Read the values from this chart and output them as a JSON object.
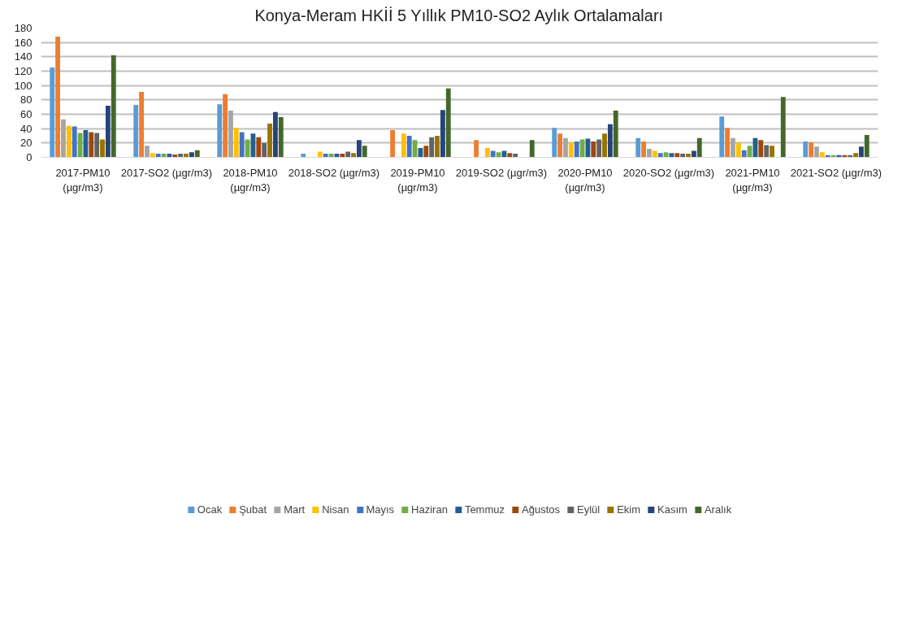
{
  "chart_data": {
    "type": "bar",
    "title": "Konya-Meram HKİİ 5 Yıllık PM10-SO2 Aylık Ortalamaları",
    "categories": [
      "2017-PM10 (µgr/m3)",
      "2017-SO2 (µgr/m3)",
      "2018-PM10 (µgr/m3)",
      "2018-SO2 (µgr/m3)",
      "2019-PM10 (µgr/m3)",
      "2019-SO2 (µgr/m3)",
      "2020-PM10 (µgr/m3)",
      "2020-SO2 (µgr/m3)",
      "2021-PM10 (µgr/m3)",
      "2021-SO2 (µgr/m3)"
    ],
    "series": [
      {
        "name": "Ocak",
        "color": "#5b9bd5",
        "values": [
          125,
          73,
          74,
          5,
          null,
          null,
          41,
          27,
          57,
          22
        ]
      },
      {
        "name": "Şubat",
        "color": "#ed7d31",
        "values": [
          168,
          91,
          88,
          null,
          38,
          24,
          33,
          22,
          41,
          21
        ]
      },
      {
        "name": "Mart",
        "color": "#a5a5a5",
        "values": [
          53,
          16,
          65,
          null,
          null,
          null,
          27,
          12,
          27,
          15
        ]
      },
      {
        "name": "Nisan",
        "color": "#ffc000",
        "values": [
          44,
          6,
          41,
          8,
          33,
          13,
          21,
          9,
          20,
          7
        ]
      },
      {
        "name": "Mayıs",
        "color": "#4472c4",
        "values": [
          43,
          5,
          35,
          5,
          30,
          9,
          22,
          6,
          10,
          3
        ]
      },
      {
        "name": "Haziran",
        "color": "#70ad47",
        "values": [
          34,
          5,
          25,
          5,
          24,
          7,
          25,
          7,
          16,
          3
        ]
      },
      {
        "name": "Temmuz",
        "color": "#255e91",
        "values": [
          38,
          5,
          33,
          5,
          13,
          9,
          26,
          6,
          27,
          3
        ]
      },
      {
        "name": "Ağustos",
        "color": "#9e480e",
        "values": [
          35,
          4,
          28,
          5,
          16,
          6,
          22,
          6,
          24,
          3
        ]
      },
      {
        "name": "Eylül",
        "color": "#636363",
        "values": [
          34,
          5,
          20,
          8,
          28,
          5,
          25,
          5,
          17,
          3
        ]
      },
      {
        "name": "Ekim",
        "color": "#997300",
        "values": [
          25,
          5,
          47,
          6,
          30,
          null,
          33,
          5,
          16,
          6
        ]
      },
      {
        "name": "Kasım",
        "color": "#264478",
        "values": [
          72,
          7,
          63,
          24,
          66,
          null,
          46,
          9,
          null,
          15
        ]
      },
      {
        "name": "Aralık",
        "color": "#43682b",
        "values": [
          142,
          10,
          56,
          16,
          96,
          24,
          65,
          27,
          84,
          31
        ]
      }
    ],
    "ylim": [
      0,
      180
    ],
    "yticks": [
      0,
      20,
      40,
      60,
      80,
      100,
      120,
      140,
      160,
      180
    ],
    "grid": "y",
    "legend": "bottom"
  }
}
